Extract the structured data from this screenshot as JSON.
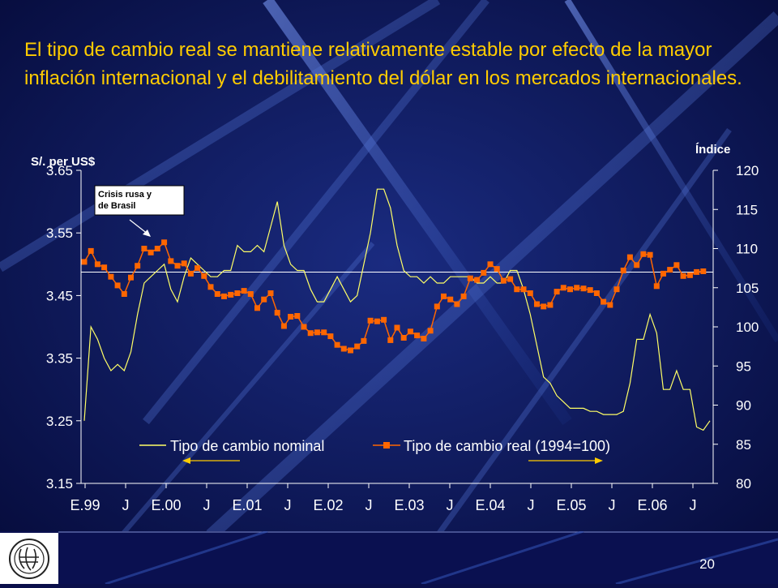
{
  "slide": {
    "title": "El tipo de cambio real se mantiene relativamente estable por efecto de la mayor inflación internacional y el debilitamiento del dólar en los mercados internacionales.",
    "page_number": "20"
  },
  "colors": {
    "background": "#0a0f4a",
    "title": "#ffcc00",
    "nominal_line": "#ffff66",
    "real_line": "#ff6600",
    "axis_text": "#ffffff"
  },
  "chart_data": {
    "type": "line",
    "ylabel_left": "S/. per US$",
    "ylabel_right": "Índice",
    "y_left": {
      "min": 3.15,
      "max": 3.65,
      "ticks": [
        "3.65",
        "3.55",
        "3.45",
        "3.35",
        "3.25",
        "3.15"
      ]
    },
    "y_right": {
      "min": 80,
      "max": 120,
      "ticks": [
        "120",
        "115",
        "110",
        "105",
        "100",
        "95",
        "90",
        "85",
        "80"
      ]
    },
    "x_tick_labels": [
      "E.99",
      "J",
      "E.00",
      "J",
      "E.01",
      "J",
      "E.02",
      "J",
      "E.03",
      "J",
      "E.04",
      "J",
      "E.05",
      "J",
      "E.06",
      "J"
    ],
    "reference_line_index": 107,
    "annotation": {
      "text_line1": "Crisis rusa y",
      "text_line2": "de Brasil"
    },
    "series": [
      {
        "name": "Tipo de cambio nominal",
        "axis": "left",
        "values": [
          3.25,
          3.4,
          3.38,
          3.35,
          3.33,
          3.34,
          3.33,
          3.36,
          3.42,
          3.47,
          3.48,
          3.49,
          3.5,
          3.46,
          3.44,
          3.48,
          3.51,
          3.5,
          3.49,
          3.48,
          3.48,
          3.49,
          3.49,
          3.53,
          3.52,
          3.52,
          3.53,
          3.52,
          3.56,
          3.6,
          3.53,
          3.5,
          3.49,
          3.49,
          3.46,
          3.44,
          3.44,
          3.46,
          3.48,
          3.46,
          3.44,
          3.45,
          3.5,
          3.55,
          3.62,
          3.62,
          3.59,
          3.53,
          3.49,
          3.48,
          3.48,
          3.47,
          3.48,
          3.47,
          3.47,
          3.48,
          3.48,
          3.48,
          3.48,
          3.47,
          3.47,
          3.48,
          3.47,
          3.47,
          3.49,
          3.49,
          3.46,
          3.42,
          3.37,
          3.32,
          3.31,
          3.29,
          3.28,
          3.27,
          3.27,
          3.27,
          3.265,
          3.265,
          3.26,
          3.26,
          3.26,
          3.265,
          3.31,
          3.38,
          3.38,
          3.42,
          3.39,
          3.3,
          3.3,
          3.33,
          3.3,
          3.3,
          3.24,
          3.235,
          3.25
        ]
      },
      {
        "name": "Tipo de cambio real (1994=100)",
        "axis": "right",
        "values": [
          108.3,
          109.7,
          108.0,
          107.6,
          106.4,
          105.3,
          104.2,
          106.3,
          107.8,
          110.0,
          109.5,
          110.0,
          110.8,
          108.4,
          107.8,
          108.1,
          106.8,
          107.5,
          106.5,
          105.1,
          104.2,
          103.9,
          104.1,
          104.3,
          104.6,
          104.2,
          102.4,
          103.5,
          104.3,
          101.8,
          100.1,
          101.3,
          101.4,
          100.0,
          99.2,
          99.3,
          99.3,
          98.8,
          97.7,
          97.2,
          97.0,
          97.5,
          98.2,
          100.8,
          100.7,
          100.9,
          98.3,
          99.9,
          98.6,
          99.4,
          98.9,
          98.5,
          99.5,
          102.6,
          103.9,
          103.5,
          102.9,
          103.9,
          106.2,
          106.0,
          106.9,
          108.0,
          107.4,
          105.9,
          106.1,
          104.8,
          104.8,
          104.3,
          102.9,
          102.6,
          102.8,
          104.5,
          105.0,
          104.8,
          105.0,
          104.9,
          104.7,
          104.3,
          103.2,
          102.8,
          104.8,
          107.2,
          108.9,
          107.9,
          109.3,
          109.2,
          105.2,
          106.8,
          107.3,
          107.9,
          106.5,
          106.6,
          107.0,
          107.1
        ]
      }
    ],
    "legend": [
      {
        "label": "Tipo de cambio nominal"
      },
      {
        "label": "Tipo de cambio real (1994=100)"
      }
    ]
  }
}
